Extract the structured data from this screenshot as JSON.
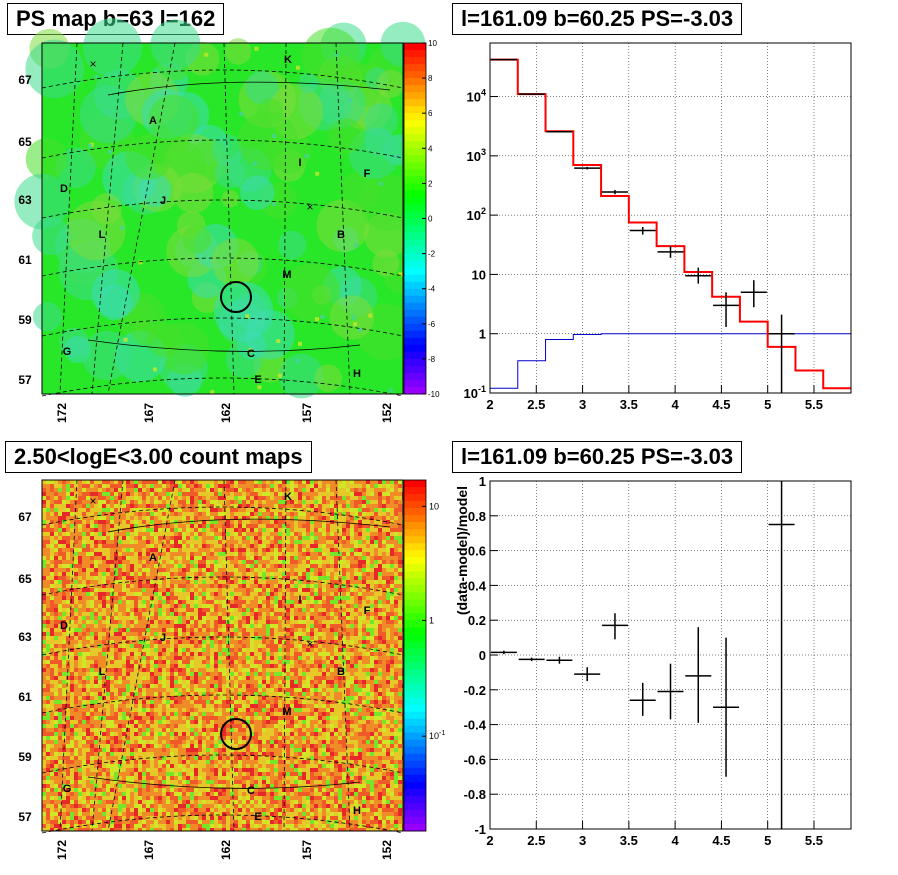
{
  "panels": {
    "top_left_title": "PS map b=63 l=162",
    "top_right_title": "l=161.09 b=60.25 PS=-3.03",
    "bottom_left_title": "2.50<logE<3.00 count maps",
    "bottom_right_title": "l=161.09 b=60.25 PS=-3.03"
  },
  "colors": {
    "model_line": "#ff0000",
    "background_line": "#0000cc",
    "data_marker": "#000000",
    "ps_map_base": "#28e628",
    "count_map_base": "#f07830"
  },
  "chart_data": [
    {
      "type": "heatmap",
      "title": "PS map b=63 l=162",
      "x_ticks": [
        "172",
        "167",
        "162",
        "157",
        "152"
      ],
      "y_ticks": [
        "67",
        "65",
        "63",
        "61",
        "59",
        "57"
      ],
      "colorbar_ticks": [
        "10",
        "8",
        "6",
        "4",
        "2",
        "0",
        "-2",
        "-4",
        "-6",
        "-8",
        "-10"
      ],
      "colorbar_range": [
        -10,
        10
      ],
      "source_labels": [
        "K",
        "A",
        "I",
        "F",
        "D",
        "J",
        "L",
        "B",
        "M",
        "G",
        "C",
        "E",
        "H"
      ],
      "grid": true
    },
    {
      "type": "line",
      "title": "l=161.09 b=60.25 PS=-3.03",
      "y_scale": "log",
      "x_ticks": [
        "2",
        "2.5",
        "3",
        "3.5",
        "4",
        "4.5",
        "5",
        "5.5"
      ],
      "y_ticks": [
        "10^4",
        "10^3",
        "10^2",
        "10",
        "1",
        "10^-1"
      ],
      "xlim": [
        2,
        5.9
      ],
      "ylim": [
        0.1,
        80000
      ],
      "grid": true,
      "series": [
        {
          "kind": "model",
          "edges": [
            2.0,
            2.3,
            2.6,
            2.9,
            3.2,
            3.5,
            3.8,
            4.1,
            4.4,
            4.7,
            5.0,
            5.3,
            5.6,
            5.9
          ],
          "values": [
            42000,
            11000,
            2600,
            700,
            210,
            75,
            30,
            11,
            4.2,
            1.6,
            0.6,
            0.24,
            0.12
          ]
        },
        {
          "kind": "background",
          "edges": [
            2.0,
            2.3,
            2.6,
            2.9,
            3.2,
            3.5,
            3.8,
            4.1,
            4.4,
            4.7,
            5.0,
            5.3,
            5.6,
            5.9
          ],
          "values": [
            0.12,
            0.35,
            0.8,
            0.97,
            1.0,
            1.0,
            1.0,
            1.0,
            1.0,
            1.0,
            1.0,
            1.0,
            1.0
          ]
        },
        {
          "kind": "data",
          "points": [
            {
              "x": 2.15,
              "y": 42000,
              "lo": 41800,
              "hi": 42200
            },
            {
              "x": 2.45,
              "y": 11000,
              "lo": 10900,
              "hi": 11100
            },
            {
              "x": 2.75,
              "y": 2550,
              "lo": 2500,
              "hi": 2600
            },
            {
              "x": 3.05,
              "y": 620,
              "lo": 590,
              "hi": 650
            },
            {
              "x": 3.35,
              "y": 245,
              "lo": 225,
              "hi": 265
            },
            {
              "x": 3.65,
              "y": 55,
              "lo": 47,
              "hi": 63
            },
            {
              "x": 3.95,
              "y": 24,
              "lo": 19,
              "hi": 30
            },
            {
              "x": 4.25,
              "y": 9.5,
              "lo": 7,
              "hi": 13
            },
            {
              "x": 4.55,
              "y": 3,
              "lo": 1.3,
              "hi": 5
            },
            {
              "x": 4.85,
              "y": 5,
              "lo": 2.8,
              "hi": 8
            },
            {
              "x": 5.15,
              "y": 1,
              "lo": 0.1,
              "hi": 2.1
            }
          ]
        }
      ]
    },
    {
      "type": "heatmap",
      "title": "2.50<logE<3.00 count maps",
      "x_ticks": [
        "172",
        "167",
        "162",
        "157",
        "152"
      ],
      "y_ticks": [
        "67",
        "65",
        "63",
        "61",
        "59",
        "57"
      ],
      "colorbar_ticks": [
        "10",
        "1",
        "10^-1"
      ],
      "colorbar_scale": "log",
      "source_labels": [
        "K",
        "A",
        "I",
        "F",
        "D",
        "J",
        "L",
        "B",
        "M",
        "G",
        "C",
        "E",
        "H"
      ],
      "grid": true
    },
    {
      "type": "scatter",
      "title": "l=161.09 b=60.25 PS=-3.03",
      "ylabel": "(data-model)/model",
      "x_ticks": [
        "2",
        "2.5",
        "3",
        "3.5",
        "4",
        "4.5",
        "5",
        "5.5"
      ],
      "y_ticks": [
        "1",
        "0.8",
        "0.6",
        "0.4",
        "0.2",
        "0",
        "-0.2",
        "-0.4",
        "-0.6",
        "-0.8",
        "-1"
      ],
      "xlim": [
        2,
        5.9
      ],
      "ylim": [
        -1,
        1
      ],
      "grid": true,
      "points": [
        {
          "x": 2.15,
          "y": 0.015,
          "lo": 0.005,
          "hi": 0.025
        },
        {
          "x": 2.45,
          "y": -0.025,
          "lo": -0.035,
          "hi": -0.015
        },
        {
          "x": 2.75,
          "y": -0.03,
          "lo": -0.05,
          "hi": -0.01
        },
        {
          "x": 3.05,
          "y": -0.11,
          "lo": -0.15,
          "hi": -0.07
        },
        {
          "x": 3.35,
          "y": 0.17,
          "lo": 0.09,
          "hi": 0.24
        },
        {
          "x": 3.65,
          "y": -0.26,
          "lo": -0.35,
          "hi": -0.16
        },
        {
          "x": 3.95,
          "y": -0.21,
          "lo": -0.37,
          "hi": -0.05
        },
        {
          "x": 4.25,
          "y": -0.12,
          "lo": -0.39,
          "hi": 0.16
        },
        {
          "x": 4.55,
          "y": -0.3,
          "lo": -0.7,
          "hi": 0.1
        },
        {
          "x": 5.15,
          "y": 0.75,
          "lo": -1.0,
          "hi": 1.0
        }
      ]
    }
  ]
}
